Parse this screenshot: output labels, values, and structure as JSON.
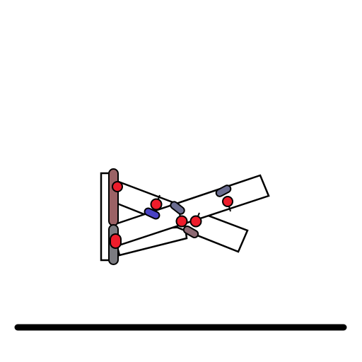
{
  "scene": {
    "background_color": "#ffffff",
    "outline_color": "#000000",
    "ground_color": "#000000"
  },
  "palette": {
    "joint_red": "#ee1c2b",
    "slot_maroon": "#9b6265",
    "slot_gray": "#7b7b80",
    "slot_slate": "#6b6d90",
    "slot_blue": "#4a43c4",
    "slot_mauve": "#8d6a73"
  },
  "icons": {
    "ground": "ground-line",
    "plank": "rectangle-outline",
    "joint": "red-circle",
    "slot": "rounded-capsule"
  }
}
